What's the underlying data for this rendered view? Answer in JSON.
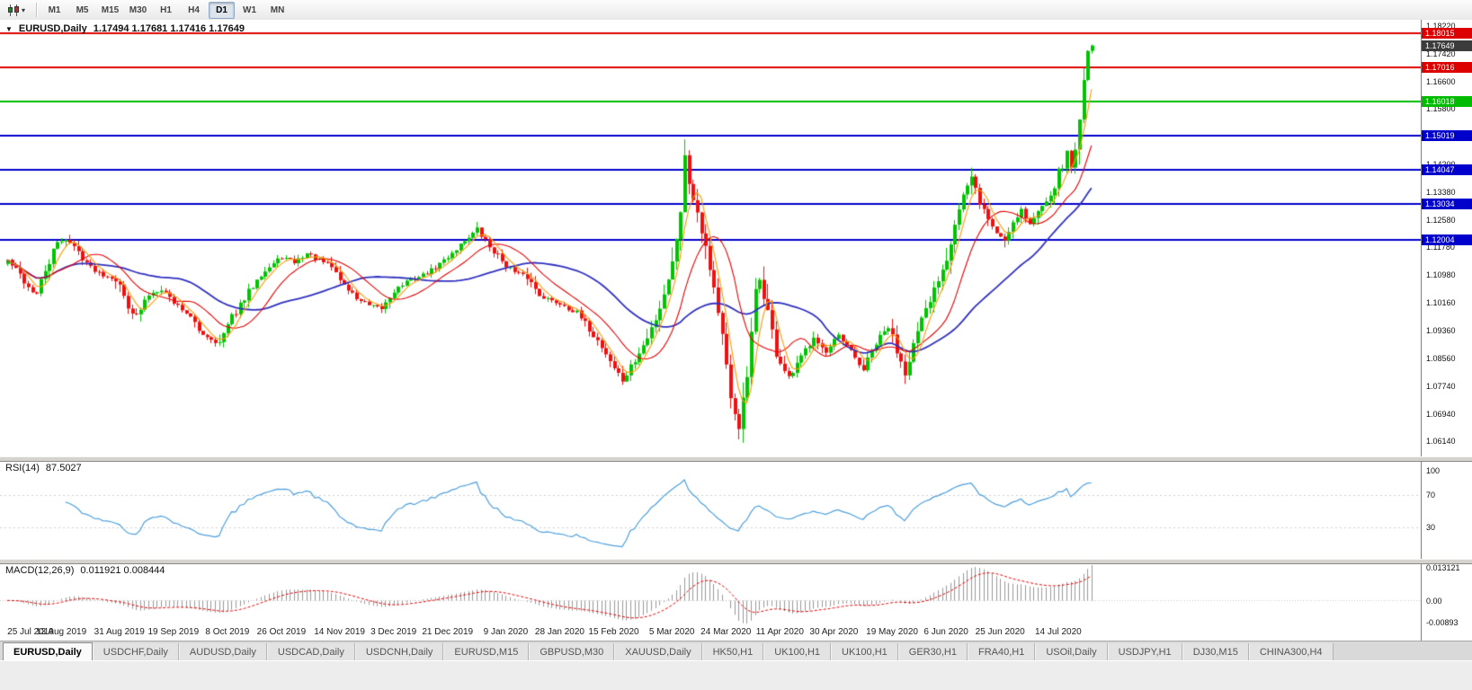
{
  "icons": {
    "chart_menu": "▼",
    "toolbar_dropdown": "▾"
  },
  "toolbar": {
    "timeframes": [
      "M1",
      "M5",
      "M15",
      "M30",
      "H1",
      "H4",
      "D1",
      "W1",
      "MN"
    ],
    "active_timeframe": "D1"
  },
  "chart_data": {
    "type": "candlestick",
    "title": "EURUSD,Daily",
    "ohlc_text": "1.17494 1.17681 1.17416 1.17649",
    "last_ohlc": {
      "open": 1.17494,
      "high": 1.17681,
      "low": 1.17416,
      "close": 1.17649
    },
    "bar_count": 262,
    "x_labels": [
      "25 Jul 2019",
      "13 Aug 2019",
      "31 Aug 2019",
      "19 Sep 2019",
      "8 Oct 2019",
      "26 Oct 2019",
      "14 Nov 2019",
      "3 Dec 2019",
      "21 Dec 2019",
      "9 Jan 2020",
      "28 Jan 2020",
      "15 Feb 2020",
      "5 Mar 2020",
      "24 Mar 2020",
      "11 Apr 2020",
      "30 Apr 2020",
      "19 May 2020",
      "6 Jun 2020",
      "25 Jun 2020",
      "14 Jul 2020"
    ],
    "x_label_indices": [
      0,
      13,
      27,
      40,
      53,
      66,
      80,
      93,
      106,
      120,
      133,
      146,
      160,
      173,
      186,
      199,
      213,
      226,
      239,
      253
    ],
    "y_axis": {
      "max": 1.184,
      "min": 1.057,
      "ticks": [
        "1.18220",
        "1.17420",
        "1.16600",
        "1.15800",
        "1.14200",
        "1.13380",
        "1.12580",
        "1.11780",
        "1.10980",
        "1.10160",
        "1.09360",
        "1.08560",
        "1.07740",
        "1.06940",
        "1.06140"
      ]
    },
    "hlines": [
      {
        "price": 1.18015,
        "color": "#dd0000",
        "label": "1.18015"
      },
      {
        "price": 1.17016,
        "color": "#dd0000",
        "label": "1.17016"
      },
      {
        "price": 1.16018,
        "color": "#00bb00",
        "label": "1.16018"
      },
      {
        "price": 1.15019,
        "color": "#0000cc",
        "label": "1.15019"
      },
      {
        "price": 1.14047,
        "color": "#0000cc",
        "label": "1.14047"
      },
      {
        "price": 1.13034,
        "color": "#0000cc",
        "label": "1.13034"
      },
      {
        "price": 1.12004,
        "color": "#0000cc",
        "label": "1.12004"
      }
    ],
    "current_price_label": {
      "text": "1.17649",
      "bg": "#3c3c3c"
    },
    "colors": {
      "up": "#00c400",
      "down": "#f01010",
      "ma_fast": "#ff9900",
      "ma_mid": "#e60000",
      "ma_slow": "#3030c0",
      "rsi": "#4d9fdb",
      "macd_hist": "#989898",
      "macd_signal": "#e60000"
    },
    "ma_periods": {
      "fast": 5,
      "mid": 13,
      "slow": 34
    },
    "price_anchors": [
      [
        0,
        1.114
      ],
      [
        3,
        1.1098
      ],
      [
        5,
        1.1062
      ],
      [
        7,
        1.104
      ],
      [
        9,
        1.111
      ],
      [
        12,
        1.119
      ],
      [
        14,
        1.1205
      ],
      [
        17,
        1.1165
      ],
      [
        20,
        1.112
      ],
      [
        23,
        1.1098
      ],
      [
        26,
        1.1088
      ],
      [
        29,
        1.101
      ],
      [
        31,
        1.0975
      ],
      [
        34,
        1.104
      ],
      [
        37,
        1.106
      ],
      [
        40,
        1.1018
      ],
      [
        43,
        1.099
      ],
      [
        46,
        1.0935
      ],
      [
        49,
        1.0912
      ],
      [
        51,
        1.0898
      ],
      [
        54,
        1.0975
      ],
      [
        57,
        1.1025
      ],
      [
        60,
        1.109
      ],
      [
        63,
        1.112
      ],
      [
        66,
        1.115
      ],
      [
        69,
        1.1135
      ],
      [
        72,
        1.116
      ],
      [
        75,
        1.114
      ],
      [
        78,
        1.1122
      ],
      [
        81,
        1.1068
      ],
      [
        84,
        1.103
      ],
      [
        87,
        1.1008
      ],
      [
        90,
        1.1
      ],
      [
        93,
        1.1052
      ],
      [
        96,
        1.1078
      ],
      [
        99,
        1.1092
      ],
      [
        102,
        1.111
      ],
      [
        105,
        1.114
      ],
      [
        108,
        1.1175
      ],
      [
        111,
        1.121
      ],
      [
        113,
        1.1228
      ],
      [
        116,
        1.118
      ],
      [
        119,
        1.114
      ],
      [
        122,
        1.1105
      ],
      [
        125,
        1.1092
      ],
      [
        128,
        1.104
      ],
      [
        131,
        1.1022
      ],
      [
        134,
        1.101
      ],
      [
        137,
        1.0985
      ],
      [
        140,
        1.094
      ],
      [
        143,
        1.089
      ],
      [
        146,
        1.0828
      ],
      [
        148,
        1.079
      ],
      [
        151,
        1.0848
      ],
      [
        154,
        1.0912
      ],
      [
        157,
        1.1005
      ],
      [
        160,
        1.1132
      ],
      [
        162,
        1.129
      ],
      [
        163,
        1.144
      ],
      [
        164,
        1.1368
      ],
      [
        166,
        1.1285
      ],
      [
        168,
        1.118
      ],
      [
        170,
        1.1062
      ],
      [
        172,
        1.092
      ],
      [
        174,
        1.073
      ],
      [
        176,
        1.066
      ],
      [
        178,
        1.08
      ],
      [
        180,
        1.1045
      ],
      [
        181,
        1.1085
      ],
      [
        183,
        1.0992
      ],
      [
        185,
        1.0868
      ],
      [
        188,
        1.0792
      ],
      [
        191,
        1.0855
      ],
      [
        194,
        1.0925
      ],
      [
        197,
        1.0868
      ],
      [
        200,
        1.0918
      ],
      [
        203,
        1.0872
      ],
      [
        206,
        1.0822
      ],
      [
        209,
        1.0898
      ],
      [
        212,
        1.0948
      ],
      [
        214,
        1.088
      ],
      [
        216,
        1.082
      ],
      [
        218,
        1.0895
      ],
      [
        220,
        1.096
      ],
      [
        222,
        1.102
      ],
      [
        224,
        1.109
      ],
      [
        226,
        1.115
      ],
      [
        228,
        1.125
      ],
      [
        230,
        1.133
      ],
      [
        232,
        1.1375
      ],
      [
        234,
        1.131
      ],
      [
        236,
        1.126
      ],
      [
        238,
        1.122
      ],
      [
        240,
        1.12
      ],
      [
        242,
        1.1255
      ],
      [
        244,
        1.129
      ],
      [
        246,
        1.1245
      ],
      [
        248,
        1.128
      ],
      [
        250,
        1.132
      ],
      [
        252,
        1.136
      ],
      [
        253,
        1.1395
      ],
      [
        254,
        1.142
      ],
      [
        255,
        1.1448
      ],
      [
        256,
        1.1412
      ],
      [
        257,
        1.1462
      ],
      [
        258,
        1.1562
      ],
      [
        259,
        1.1655
      ],
      [
        260,
        1.17494
      ],
      [
        261,
        1.17649
      ]
    ],
    "key_points": [
      {
        "index": 113,
        "high": 1.1239
      },
      {
        "index": 148,
        "low": 1.0778
      },
      {
        "index": 163,
        "high": 1.1492
      },
      {
        "index": 176,
        "low": 1.0636
      }
    ],
    "rsi": {
      "label": "RSI(14)",
      "value": "87.5027",
      "period": 14,
      "axis_ticks": [
        "100",
        "70",
        "30"
      ],
      "levels": [
        70,
        30
      ]
    },
    "macd": {
      "label": "MACD(12,26,9)",
      "values_text": "0.011921 0.008444",
      "macd_value": 0.011921,
      "signal_value": 0.008444,
      "fast": 12,
      "slow": 26,
      "signal": 9,
      "axis_top": "0.013121",
      "axis_zero": "0.00",
      "axis_bottom": "-0.00893"
    }
  },
  "tabs": {
    "items": [
      {
        "label": "EURUSD,Daily",
        "active": true
      },
      {
        "label": "USDCHF,Daily",
        "active": false
      },
      {
        "label": "AUDUSD,Daily",
        "active": false
      },
      {
        "label": "USDCAD,Daily",
        "active": false
      },
      {
        "label": "USDCNH,Daily",
        "active": false
      },
      {
        "label": "EURUSD,M15",
        "active": false
      },
      {
        "label": "GBPUSD,M30",
        "active": false
      },
      {
        "label": "XAUUSD,Daily",
        "active": false
      },
      {
        "label": "HK50,H1",
        "active": false
      },
      {
        "label": "UK100,H1",
        "active": false
      },
      {
        "label": "UK100,H1",
        "active": false
      },
      {
        "label": "GER30,H1",
        "active": false
      },
      {
        "label": "FRA40,H1",
        "active": false
      },
      {
        "label": "USOil,Daily",
        "active": false
      },
      {
        "label": "USDJPY,H1",
        "active": false
      },
      {
        "label": "DJ30,M15",
        "active": false
      },
      {
        "label": "CHINA300,H4",
        "active": false
      }
    ]
  }
}
